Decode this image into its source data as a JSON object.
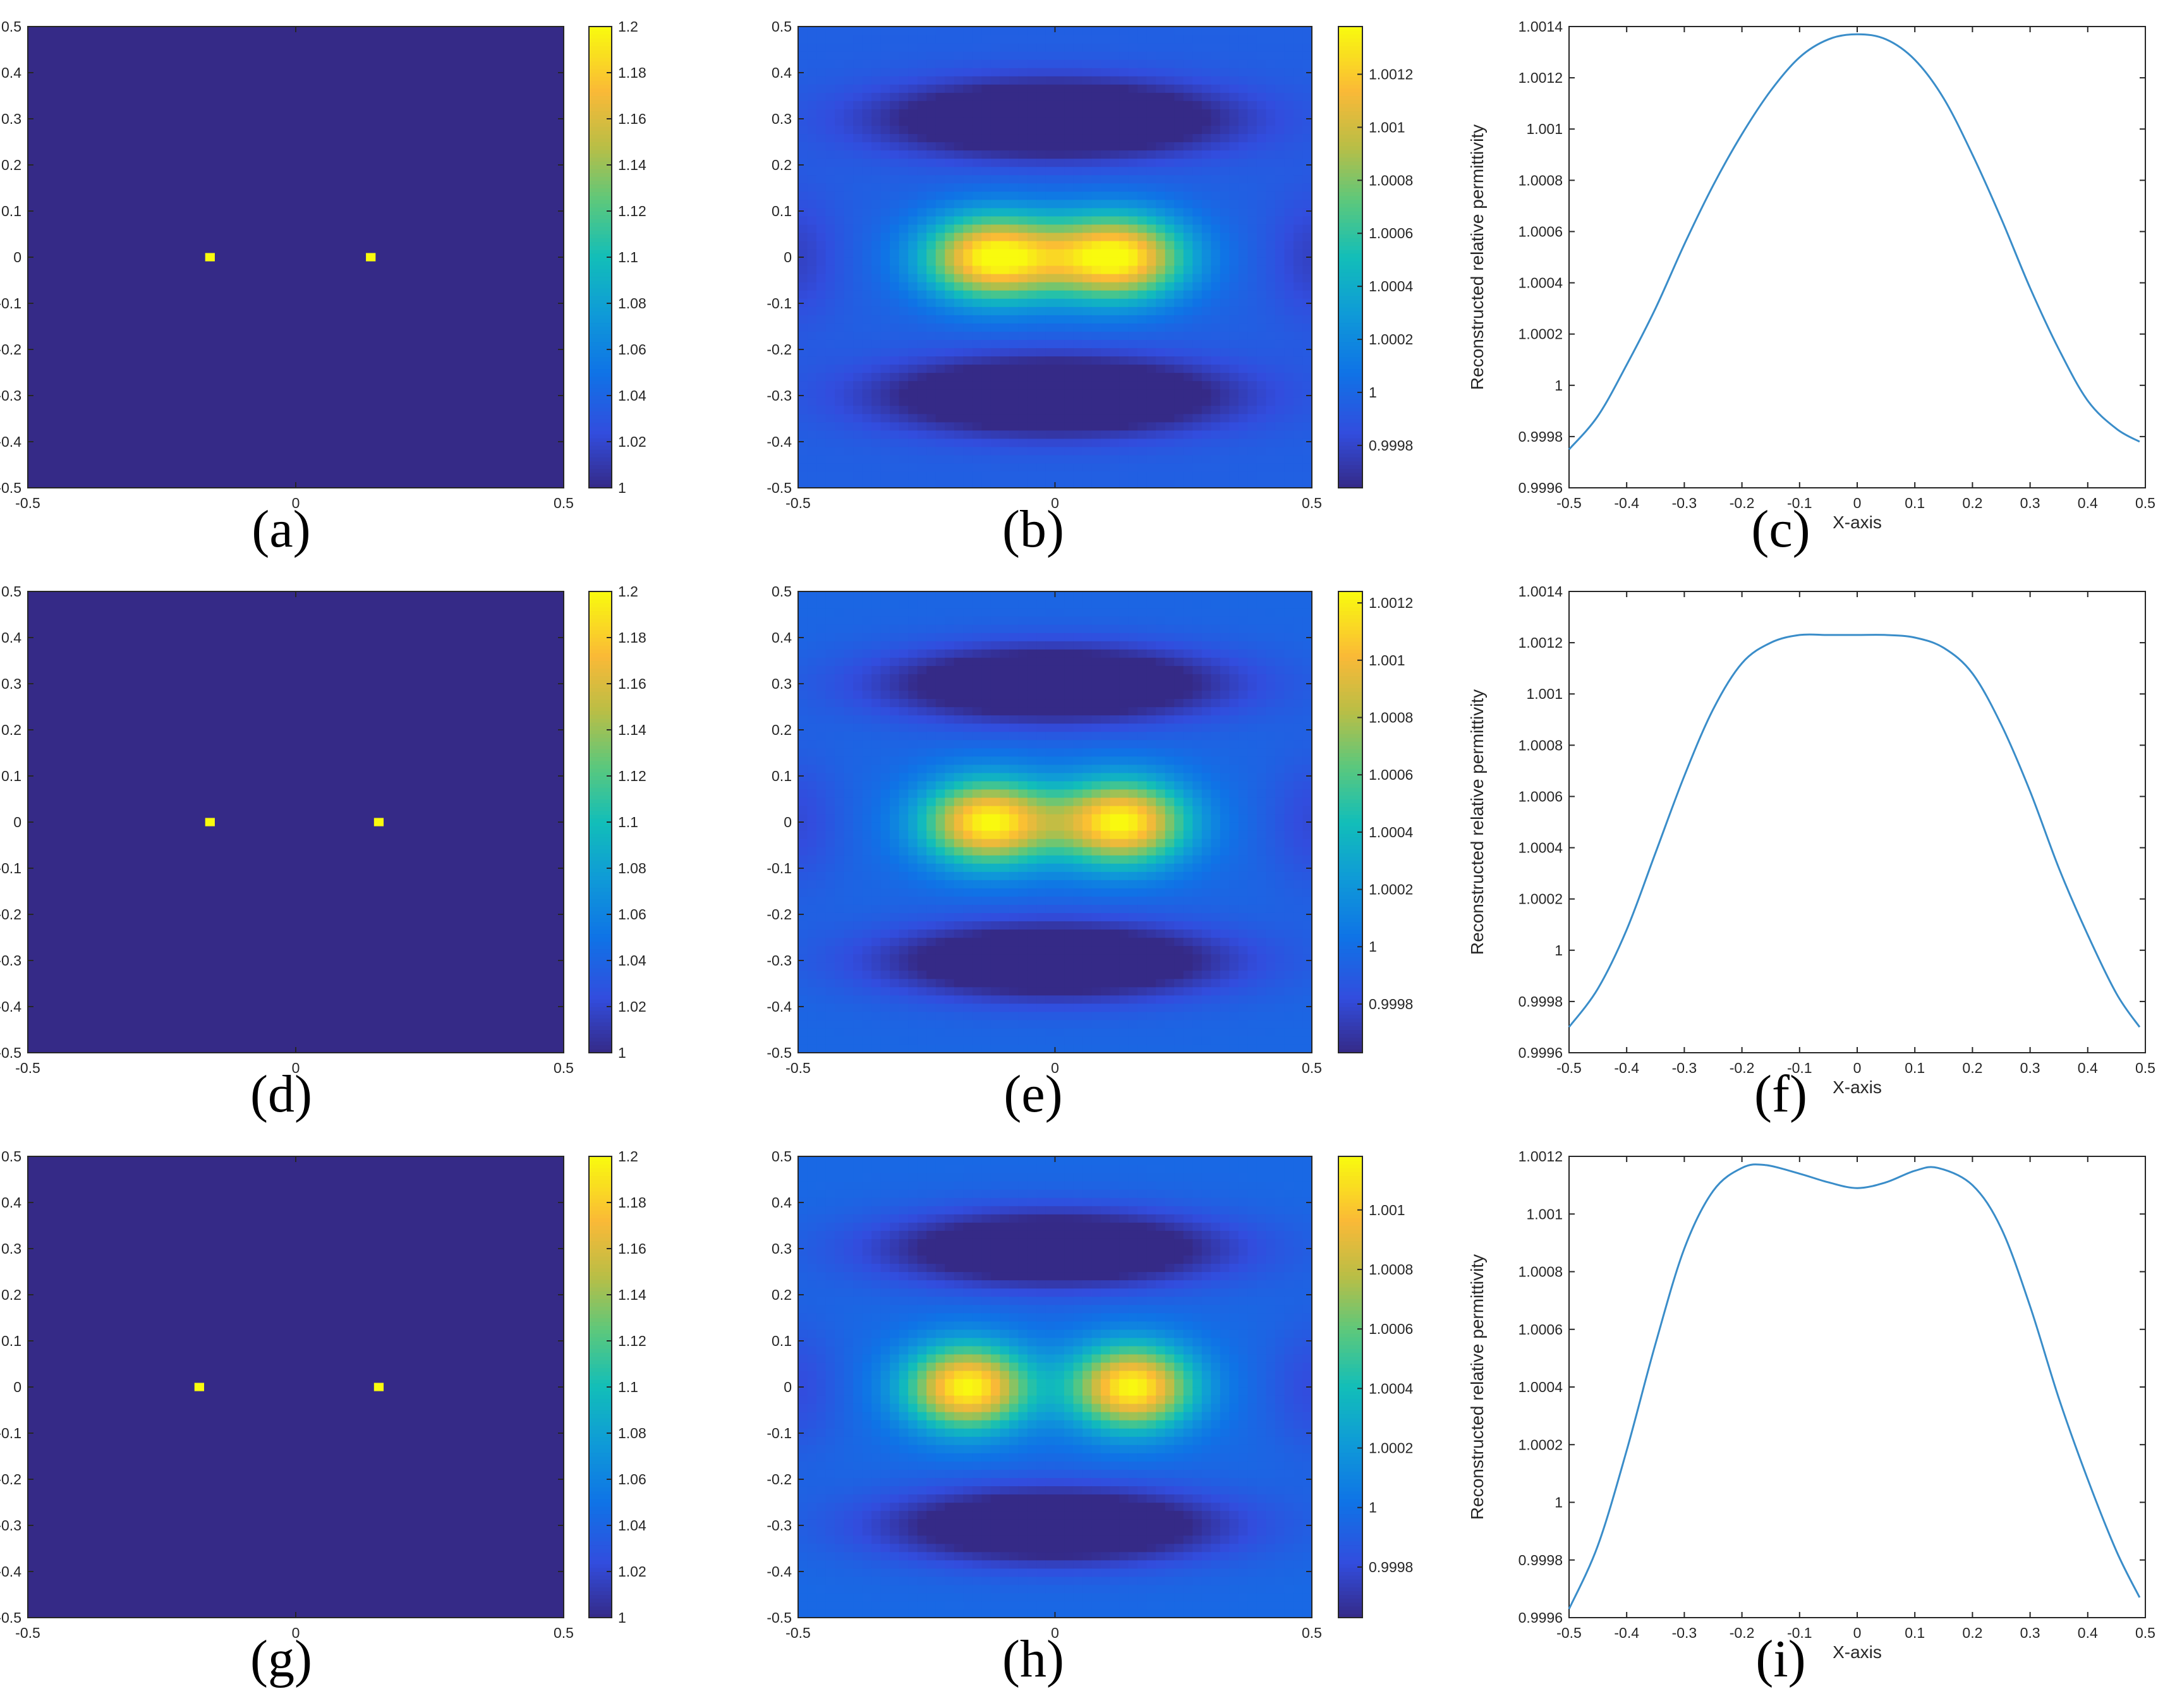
{
  "figure": {
    "panel_labels": [
      "(a)",
      "(b)",
      "(c)",
      "(d)",
      "(e)",
      "(f)",
      "(g)",
      "(h)",
      "(i)"
    ]
  },
  "colors": {
    "frame": "#262626",
    "line": "#3A8DC9",
    "parula_low": "#352A87",
    "parula_mid": "#12BEB9",
    "parula_high": "#F9FB0E"
  },
  "chart_data": [
    {
      "id": "a",
      "type": "heatmap",
      "title": "",
      "xlabel": "",
      "ylabel": "",
      "xlim": [
        -0.5,
        0.5
      ],
      "ylim": [
        -0.5,
        0.5
      ],
      "xticks": [
        -0.5,
        0,
        0.5
      ],
      "xtick_labels": [
        "-0.5",
        "0",
        "0.5"
      ],
      "yticks": [
        0.5,
        0.4,
        0.3,
        0.2,
        0.1,
        0,
        -0.1,
        -0.2,
        -0.3,
        -0.4,
        -0.5
      ],
      "ytick_labels": [
        "0.5",
        "0.4",
        "0.3",
        "0.2",
        "0.1",
        "0",
        "-0.1",
        "-0.2",
        "-0.3",
        "-0.4",
        "-0.5"
      ],
      "background_value": 1.0,
      "scatterers": [
        {
          "x": -0.16,
          "y": 0,
          "value": 1.2
        },
        {
          "x": 0.14,
          "y": 0,
          "value": 1.2
        }
      ],
      "colorbar": {
        "range": [
          1,
          1.2
        ],
        "ticks": [
          1.2,
          1.18,
          1.16,
          1.14,
          1.12,
          1.1,
          1.08,
          1.06,
          1.04,
          1.02,
          1
        ],
        "tick_labels": [
          "1.2",
          "1.18",
          "1.16",
          "1.14",
          "1.12",
          "1.1",
          "1.08",
          "1.06",
          "1.04",
          "1.02",
          "1"
        ]
      }
    },
    {
      "id": "b",
      "type": "heatmap",
      "title": "",
      "xlabel": "",
      "ylabel": "",
      "xlim": [
        -0.5,
        0.5
      ],
      "ylim": [
        -0.5,
        0.5
      ],
      "xticks": [
        -0.5,
        0,
        0.5
      ],
      "xtick_labels": [
        "-0.5",
        "0",
        "0.5"
      ],
      "yticks": [
        0.5,
        0.4,
        0.3,
        0.2,
        0.1,
        0,
        -0.1,
        -0.2,
        -0.3,
        -0.4,
        -0.5
      ],
      "ytick_labels": [
        "0.5",
        "0.4",
        "0.3",
        "0.2",
        "0.1",
        "0",
        "-0.1",
        "-0.2",
        "-0.3",
        "-0.4",
        "-0.5"
      ],
      "field": {
        "sources": [
          -0.12,
          0.12
        ],
        "width": 0.095,
        "height": 0.065,
        "amplitude": 0.00144,
        "base": 0.99996
      },
      "colorbar": {
        "range": [
          0.99964,
          1.00138
        ],
        "ticks": [
          1.0012,
          1.001,
          1.0008,
          1.0006,
          1.0004,
          1.0002,
          1,
          0.9998
        ],
        "tick_labels": [
          "1.0012",
          "1.001",
          "1.0008",
          "1.0006",
          "1.0004",
          "1.0002",
          "1",
          "0.9998"
        ]
      }
    },
    {
      "id": "c",
      "type": "line",
      "title": "",
      "xlabel": "X-axis",
      "ylabel": "Reconstructed relative permittivity",
      "xlim": [
        -0.5,
        0.5
      ],
      "ylim": [
        0.9996,
        1.0014
      ],
      "xticks": [
        -0.5,
        -0.4,
        -0.3,
        -0.2,
        -0.1,
        0,
        0.1,
        0.2,
        0.3,
        0.4,
        0.5
      ],
      "xtick_labels": [
        "-0.5",
        "-0.4",
        "-0.3",
        "-0.2",
        "-0.1",
        "0",
        "0.1",
        "0.2",
        "0.3",
        "0.4",
        "0.5"
      ],
      "yticks": [
        1.0014,
        1.0012,
        1.001,
        1.0008,
        1.0006,
        1.0004,
        1.0002,
        1,
        0.9998,
        0.9996
      ],
      "ytick_labels": [
        "1.0014",
        "1.0012",
        "1.001",
        "1.0008",
        "1.0006",
        "1.0004",
        "1.0002",
        "1",
        "0.9998",
        "0.9996"
      ],
      "x": [
        -0.5,
        -0.45,
        -0.4,
        -0.35,
        -0.3,
        -0.25,
        -0.2,
        -0.15,
        -0.1,
        -0.05,
        0,
        0.05,
        0.1,
        0.15,
        0.2,
        0.25,
        0.3,
        0.35,
        0.4,
        0.45,
        0.49
      ],
      "values": [
        0.99975,
        0.99988,
        1.00008,
        1.0003,
        1.00055,
        1.00078,
        1.00098,
        1.00115,
        1.00128,
        1.00135,
        1.00137,
        1.00135,
        1.00127,
        1.00112,
        1.0009,
        1.00065,
        1.00038,
        1.00014,
        0.99994,
        0.99983,
        0.99978
      ]
    },
    {
      "id": "d",
      "type": "heatmap",
      "title": "",
      "xlabel": "",
      "ylabel": "",
      "xlim": [
        -0.5,
        0.5
      ],
      "ylim": [
        -0.5,
        0.5
      ],
      "xticks": [
        -0.5,
        0,
        0.5
      ],
      "xtick_labels": [
        "-0.5",
        "0",
        "0.5"
      ],
      "yticks": [
        0.5,
        0.4,
        0.3,
        0.2,
        0.1,
        0,
        -0.1,
        -0.2,
        -0.3,
        -0.4,
        -0.5
      ],
      "ytick_labels": [
        "0.5",
        "0.4",
        "0.3",
        "0.2",
        "0.1",
        "0",
        "-0.1",
        "-0.2",
        "-0.3",
        "-0.4",
        "-0.5"
      ],
      "background_value": 1.0,
      "scatterers": [
        {
          "x": -0.16,
          "y": 0,
          "value": 1.2
        },
        {
          "x": 0.155,
          "y": 0,
          "value": 1.2
        }
      ],
      "colorbar": {
        "range": [
          1,
          1.2
        ],
        "ticks": [
          1.2,
          1.18,
          1.16,
          1.14,
          1.12,
          1.1,
          1.08,
          1.06,
          1.04,
          1.02,
          1
        ],
        "tick_labels": [
          "1.2",
          "1.18",
          "1.16",
          "1.14",
          "1.12",
          "1.1",
          "1.08",
          "1.06",
          "1.04",
          "1.02",
          "1"
        ]
      }
    },
    {
      "id": "e",
      "type": "heatmap",
      "title": "",
      "xlabel": "",
      "ylabel": "",
      "xlim": [
        -0.5,
        0.5
      ],
      "ylim": [
        -0.5,
        0.5
      ],
      "xticks": [
        -0.5,
        0,
        0.5
      ],
      "xtick_labels": [
        "-0.5",
        "0",
        "0.5"
      ],
      "yticks": [
        0.5,
        0.4,
        0.3,
        0.2,
        0.1,
        0,
        -0.1,
        -0.2,
        -0.3,
        -0.4,
        -0.5
      ],
      "ytick_labels": [
        "0.5",
        "0.4",
        "0.3",
        "0.2",
        "0.1",
        "0",
        "-0.1",
        "-0.2",
        "-0.3",
        "-0.4",
        "-0.5"
      ],
      "field": {
        "sources": [
          -0.13,
          0.13
        ],
        "width": 0.09,
        "height": 0.065,
        "amplitude": 0.00127,
        "base": 0.99996
      },
      "colorbar": {
        "range": [
          0.99963,
          1.00124
        ],
        "ticks": [
          1.0012,
          1.001,
          1.0008,
          1.0006,
          1.0004,
          1.0002,
          1,
          0.9998
        ],
        "tick_labels": [
          "1.0012",
          "1.001",
          "1.0008",
          "1.0006",
          "1.0004",
          "1.0002",
          "1",
          "0.9998"
        ]
      }
    },
    {
      "id": "f",
      "type": "line",
      "title": "",
      "xlabel": "X-axis",
      "ylabel": "Reconstructed relative permittivity",
      "xlim": [
        -0.5,
        0.5
      ],
      "ylim": [
        0.9996,
        1.0014
      ],
      "xticks": [
        -0.5,
        -0.4,
        -0.3,
        -0.2,
        -0.1,
        0,
        0.1,
        0.2,
        0.3,
        0.4,
        0.5
      ],
      "xtick_labels": [
        "-0.5",
        "-0.4",
        "-0.3",
        "-0.2",
        "-0.1",
        "0",
        "0.1",
        "0.2",
        "0.3",
        "0.4",
        "0.5"
      ],
      "yticks": [
        1.0014,
        1.0012,
        1.001,
        1.0008,
        1.0006,
        1.0004,
        1.0002,
        1,
        0.9998,
        0.9996
      ],
      "ytick_labels": [
        "1.0014",
        "1.0012",
        "1.001",
        "1.0008",
        "1.0006",
        "1.0004",
        "1.0002",
        "1",
        "0.9998",
        "0.9996"
      ],
      "x": [
        -0.5,
        -0.45,
        -0.4,
        -0.35,
        -0.3,
        -0.25,
        -0.2,
        -0.15,
        -0.1,
        -0.05,
        0,
        0.05,
        0.1,
        0.15,
        0.2,
        0.25,
        0.3,
        0.35,
        0.4,
        0.45,
        0.49
      ],
      "values": [
        0.9997,
        0.99985,
        1.00008,
        1.00038,
        1.00068,
        1.00094,
        1.00112,
        1.0012,
        1.00123,
        1.00123,
        1.00123,
        1.00123,
        1.00122,
        1.00118,
        1.00108,
        1.00088,
        1.00062,
        1.00032,
        1.00006,
        0.99983,
        0.9997
      ]
    },
    {
      "id": "g",
      "type": "heatmap",
      "title": "",
      "xlabel": "",
      "ylabel": "",
      "xlim": [
        -0.5,
        0.5
      ],
      "ylim": [
        -0.5,
        0.5
      ],
      "xticks": [
        -0.5,
        0,
        0.5
      ],
      "xtick_labels": [
        "-0.5",
        "0",
        "0.5"
      ],
      "yticks": [
        0.5,
        0.4,
        0.3,
        0.2,
        0.1,
        0,
        -0.1,
        -0.2,
        -0.3,
        -0.4,
        -0.5
      ],
      "ytick_labels": [
        "0.5",
        "0.4",
        "0.3",
        "0.2",
        "0.1",
        "0",
        "-0.1",
        "-0.2",
        "-0.3",
        "-0.4",
        "-0.5"
      ],
      "background_value": 1.0,
      "scatterers": [
        {
          "x": -0.18,
          "y": 0,
          "value": 1.2
        },
        {
          "x": 0.155,
          "y": 0,
          "value": 1.2
        }
      ],
      "colorbar": {
        "range": [
          1,
          1.2
        ],
        "ticks": [
          1.2,
          1.18,
          1.16,
          1.14,
          1.12,
          1.1,
          1.08,
          1.06,
          1.04,
          1.02,
          1
        ],
        "tick_labels": [
          "1.2",
          "1.18",
          "1.16",
          "1.14",
          "1.12",
          "1.1",
          "1.08",
          "1.06",
          "1.04",
          "1.02",
          "1"
        ]
      }
    },
    {
      "id": "h",
      "type": "heatmap",
      "title": "",
      "xlabel": "",
      "ylabel": "",
      "xlim": [
        -0.5,
        0.5
      ],
      "ylim": [
        -0.5,
        0.5
      ],
      "xticks": [
        -0.5,
        0,
        0.5
      ],
      "xtick_labels": [
        "-0.5",
        "0",
        "0.5"
      ],
      "yticks": [
        0.5,
        0.4,
        0.3,
        0.2,
        0.1,
        0,
        -0.1,
        -0.2,
        -0.3,
        -0.4,
        -0.5
      ],
      "ytick_labels": [
        "0.5",
        "0.4",
        "0.3",
        "0.2",
        "0.1",
        "0",
        "-0.1",
        "-0.2",
        "-0.3",
        "-0.4",
        "-0.5"
      ],
      "field": {
        "sources": [
          -0.17,
          0.15
        ],
        "width": 0.085,
        "height": 0.065,
        "amplitude": 0.00122,
        "base": 0.99996
      },
      "colorbar": {
        "range": [
          0.99963,
          1.00118
        ],
        "ticks": [
          1.001,
          1.0008,
          1.0006,
          1.0004,
          1.0002,
          1,
          0.9998
        ],
        "tick_labels": [
          "1.001",
          "1.0008",
          "1.0006",
          "1.0004",
          "1.0002",
          "1",
          "0.9998"
        ]
      }
    },
    {
      "id": "i",
      "type": "line",
      "title": "",
      "xlabel": "X-axis",
      "ylabel": "Reconstructed relative permittivity",
      "xlim": [
        -0.5,
        0.5
      ],
      "ylim": [
        0.9996,
        1.0012
      ],
      "xticks": [
        -0.5,
        -0.4,
        -0.3,
        -0.2,
        -0.1,
        0,
        0.1,
        0.2,
        0.3,
        0.4,
        0.5
      ],
      "xtick_labels": [
        "-0.5",
        "-0.4",
        "-0.3",
        "-0.2",
        "-0.1",
        "0",
        "0.1",
        "0.2",
        "0.3",
        "0.4",
        "0.5"
      ],
      "yticks": [
        1.0012,
        1.001,
        1.0008,
        1.0006,
        1.0004,
        1.0002,
        1,
        0.9998,
        0.9996
      ],
      "ytick_labels": [
        "1.0012",
        "1.001",
        "1.0008",
        "1.0006",
        "1.0004",
        "1.0002",
        "1",
        "0.9998",
        "0.9996"
      ],
      "x": [
        -0.5,
        -0.45,
        -0.4,
        -0.35,
        -0.3,
        -0.25,
        -0.2,
        -0.16,
        -0.1,
        -0.05,
        0,
        0.05,
        0.1,
        0.14,
        0.2,
        0.25,
        0.3,
        0.35,
        0.4,
        0.45,
        0.49
      ],
      "values": [
        0.99963,
        0.99985,
        1.00018,
        1.00055,
        1.00088,
        1.00108,
        1.00116,
        1.00117,
        1.00114,
        1.00111,
        1.00109,
        1.00111,
        1.00115,
        1.00116,
        1.0011,
        1.00095,
        1.00068,
        1.00036,
        1.00008,
        0.99983,
        0.99967
      ]
    }
  ]
}
